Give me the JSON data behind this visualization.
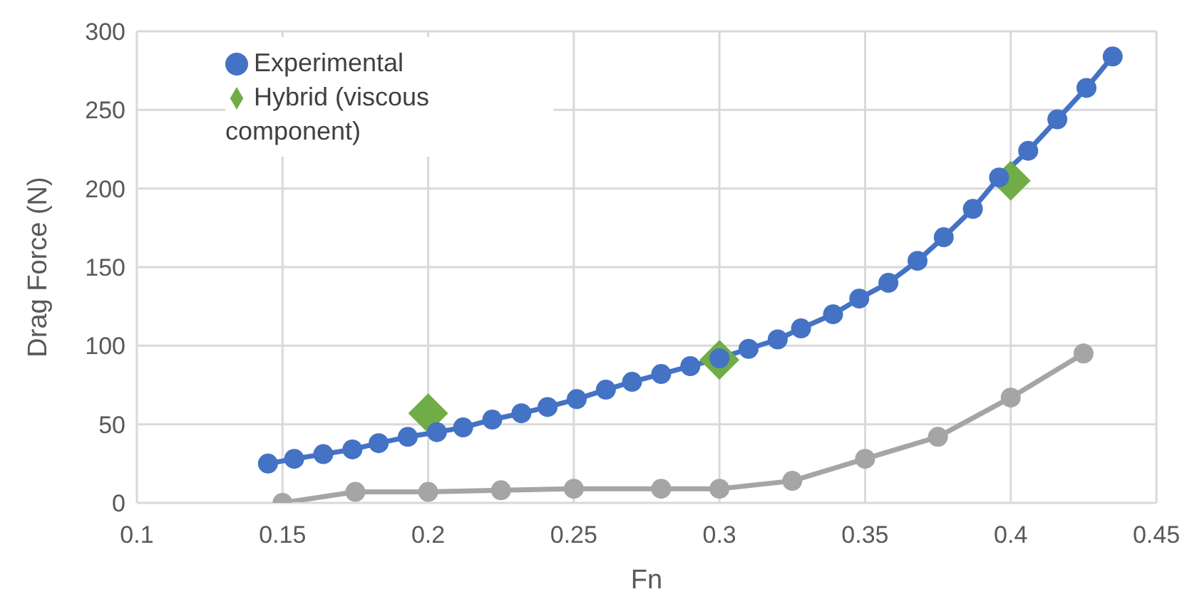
{
  "chart_data": {
    "type": "line",
    "xlabel": "Fn",
    "ylabel": "Drag Force (N)",
    "xlim": [
      0.1,
      0.45
    ],
    "xticks": [
      0.1,
      0.15,
      0.2,
      0.25,
      0.3,
      0.35,
      0.4,
      0.45
    ],
    "ylim": [
      0,
      300
    ],
    "yticks": [
      0,
      50,
      100,
      150,
      200,
      250,
      300
    ],
    "grid": true,
    "legend": "top left",
    "marker": "circle",
    "line_style": "solid",
    "series": [
      {
        "name": "Experimental",
        "color": "#4472c4",
        "x": [
          0.145,
          0.154,
          0.164,
          0.174,
          0.183,
          0.193,
          0.203,
          0.212,
          0.222,
          0.232,
          0.241,
          0.251,
          0.261,
          0.27,
          0.28,
          0.29,
          0.3,
          0.31,
          0.32,
          0.328,
          0.339,
          0.348,
          0.358,
          0.368,
          0.377,
          0.387,
          0.396,
          0.406,
          0.416,
          0.426,
          0.435
        ],
        "values": [
          25,
          28,
          31,
          34,
          38,
          42,
          45,
          48,
          53,
          57,
          61,
          66,
          72,
          77,
          82,
          87,
          92,
          98,
          104,
          111,
          120,
          130,
          140,
          154,
          169,
          187,
          207,
          224,
          244,
          264,
          284
        ]
      },
      {
        "color": "#a5a5a5",
        "x": [
          0.15,
          0.175,
          0.2,
          0.225,
          0.25,
          0.28,
          0.3,
          0.325,
          0.35,
          0.375,
          0.4,
          0.425
        ],
        "values": [
          0,
          7,
          7,
          8,
          9,
          9,
          9,
          14,
          28,
          42,
          67,
          95
        ]
      },
      {
        "name": "Hybrid (viscous component)",
        "type": "scatter",
        "marker": "diamond",
        "color": "#70ad47",
        "x": [
          0.2,
          0.3,
          0.4
        ],
        "values": [
          57,
          91,
          205
        ]
      }
    ]
  }
}
